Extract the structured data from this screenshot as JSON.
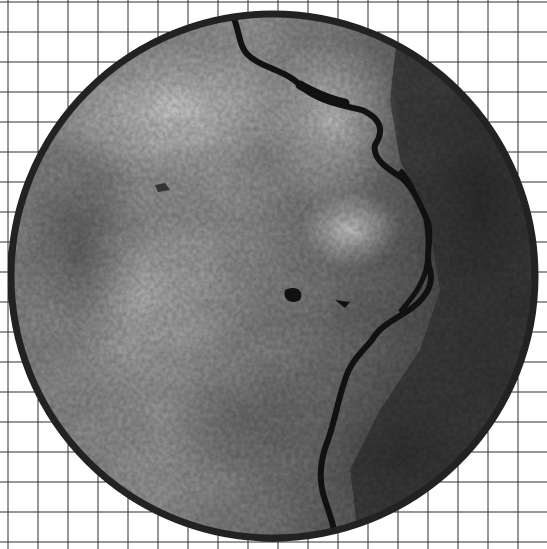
{
  "image": {
    "kind": "circular grayscale satellite view over a square grid",
    "grid_color": "#2f2f2f",
    "background_color": "#ffffff",
    "frame_color": "#222222",
    "terrain_dark": "#3a3a3a",
    "terrain_light": "#d6d6d6",
    "water_color": "#111111"
  }
}
